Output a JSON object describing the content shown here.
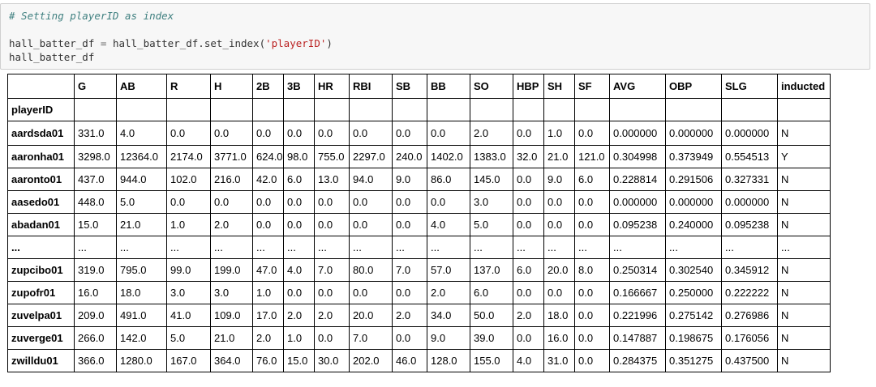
{
  "code": {
    "comment": "# Setting playerID as index",
    "line2": {
      "var": "hall_batter_df",
      "op": "=",
      "call": "hall_batter_df.set_index(",
      "arg": "'playerID'",
      "close": ")"
    },
    "line3": "hall_batter_df"
  },
  "table": {
    "columns": [
      "G",
      "AB",
      "R",
      "H",
      "2B",
      "3B",
      "HR",
      "RBI",
      "SB",
      "BB",
      "SO",
      "HBP",
      "SH",
      "SF",
      "AVG",
      "OBP",
      "SLG",
      "inducted"
    ],
    "index_name": "playerID",
    "rows": [
      {
        "id": "aardsda01",
        "cells": [
          "331.0",
          "4.0",
          "0.0",
          "0.0",
          "0.0",
          "0.0",
          "0.0",
          "0.0",
          "0.0",
          "0.0",
          "2.0",
          "0.0",
          "1.0",
          "0.0",
          "0.000000",
          "0.000000",
          "0.000000",
          "N"
        ]
      },
      {
        "id": "aaronha01",
        "cells": [
          "3298.0",
          "12364.0",
          "2174.0",
          "3771.0",
          "624.0",
          "98.0",
          "755.0",
          "2297.0",
          "240.0",
          "1402.0",
          "1383.0",
          "32.0",
          "21.0",
          "121.0",
          "0.304998",
          "0.373949",
          "0.554513",
          "Y"
        ]
      },
      {
        "id": "aaronto01",
        "cells": [
          "437.0",
          "944.0",
          "102.0",
          "216.0",
          "42.0",
          "6.0",
          "13.0",
          "94.0",
          "9.0",
          "86.0",
          "145.0",
          "0.0",
          "9.0",
          "6.0",
          "0.228814",
          "0.291506",
          "0.327331",
          "N"
        ]
      },
      {
        "id": "aasedo01",
        "cells": [
          "448.0",
          "5.0",
          "0.0",
          "0.0",
          "0.0",
          "0.0",
          "0.0",
          "0.0",
          "0.0",
          "0.0",
          "3.0",
          "0.0",
          "0.0",
          "0.0",
          "0.000000",
          "0.000000",
          "0.000000",
          "N"
        ]
      },
      {
        "id": "abadan01",
        "cells": [
          "15.0",
          "21.0",
          "1.0",
          "2.0",
          "0.0",
          "0.0",
          "0.0",
          "0.0",
          "0.0",
          "4.0",
          "5.0",
          "0.0",
          "0.0",
          "0.0",
          "0.095238",
          "0.240000",
          "0.095238",
          "N"
        ]
      },
      {
        "id": "...",
        "cells": [
          "...",
          "...",
          "...",
          "...",
          "...",
          "...",
          "...",
          "...",
          "...",
          "...",
          "...",
          "...",
          "...",
          "...",
          "...",
          "...",
          "...",
          "..."
        ]
      },
      {
        "id": "zupcibo01",
        "cells": [
          "319.0",
          "795.0",
          "99.0",
          "199.0",
          "47.0",
          "4.0",
          "7.0",
          "80.0",
          "7.0",
          "57.0",
          "137.0",
          "6.0",
          "20.0",
          "8.0",
          "0.250314",
          "0.302540",
          "0.345912",
          "N"
        ]
      },
      {
        "id": "zupofr01",
        "cells": [
          "16.0",
          "18.0",
          "3.0",
          "3.0",
          "1.0",
          "0.0",
          "0.0",
          "0.0",
          "0.0",
          "2.0",
          "6.0",
          "0.0",
          "0.0",
          "0.0",
          "0.166667",
          "0.250000",
          "0.222222",
          "N"
        ]
      },
      {
        "id": "zuvelpa01",
        "cells": [
          "209.0",
          "491.0",
          "41.0",
          "109.0",
          "17.0",
          "2.0",
          "2.0",
          "20.0",
          "2.0",
          "34.0",
          "50.0",
          "2.0",
          "18.0",
          "0.0",
          "0.221996",
          "0.275142",
          "0.276986",
          "N"
        ]
      },
      {
        "id": "zuverge01",
        "cells": [
          "266.0",
          "142.0",
          "5.0",
          "21.0",
          "2.0",
          "1.0",
          "0.0",
          "7.0",
          "0.0",
          "9.0",
          "39.0",
          "0.0",
          "16.0",
          "0.0",
          "0.147887",
          "0.198675",
          "0.176056",
          "N"
        ]
      },
      {
        "id": "zwilldu01",
        "cells": [
          "366.0",
          "1280.0",
          "167.0",
          "364.0",
          "76.0",
          "15.0",
          "30.0",
          "202.0",
          "46.0",
          "128.0",
          "155.0",
          "4.0",
          "31.0",
          "0.0",
          "0.284375",
          "0.351275",
          "0.437500",
          "N"
        ]
      }
    ]
  }
}
